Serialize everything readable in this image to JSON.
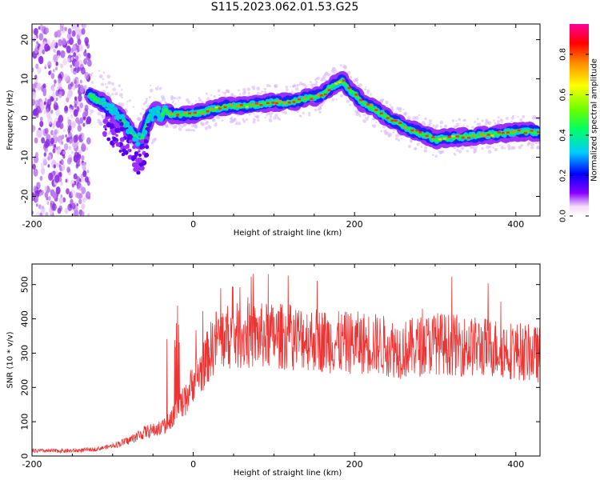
{
  "title": "S115.2023.062.01.53.G25",
  "chart_data": [
    {
      "type": "heatmap",
      "xlabel": "Height of straight line (km)",
      "ylabel": "Frequency (Hz)",
      "xlim": [
        -200,
        430
      ],
      "ylim": [
        -25,
        24
      ],
      "xticks": [
        -200,
        0,
        200,
        400
      ],
      "yticks": [
        -20,
        -10,
        0,
        10,
        20
      ],
      "colorbar": {
        "label": "Normalized spectral amplitude",
        "range": [
          0.0,
          0.95
        ],
        "ticks": [
          "0.0",
          "0.2",
          "0.4",
          "0.6",
          "0.8"
        ]
      },
      "ridge": {
        "x": [
          -130,
          -110,
          -90,
          -75,
          -65,
          -55,
          -45,
          -40,
          -35,
          -30,
          -20,
          0,
          20,
          40,
          60,
          80,
          100,
          120,
          140,
          160,
          175,
          185,
          195,
          210,
          230,
          250,
          270,
          290,
          300,
          320,
          350,
          380,
          400,
          430
        ],
        "y": [
          6,
          3.5,
          0,
          -4,
          -6,
          0,
          2,
          0,
          2.5,
          1,
          1,
          1,
          2,
          3,
          3,
          3.5,
          4,
          4,
          5,
          6,
          8.5,
          9.5,
          7,
          4,
          1.5,
          -1,
          -3,
          -4.5,
          -5.5,
          -5,
          -4.5,
          -4,
          -3.5,
          -3.5
        ]
      }
    },
    {
      "type": "line",
      "series": [
        {
          "values": "dense trace",
          "color": "#ee3333"
        }
      ],
      "xlabel": "Height of straight line (km)",
      "ylabel": "SNR (10 * v/v)",
      "xlim": [
        -200,
        430
      ],
      "ylim": [
        0,
        560
      ],
      "xticks": [
        -200,
        0,
        200,
        400
      ],
      "yticks": [
        0,
        100,
        200,
        300,
        400,
        500
      ],
      "envelope": {
        "x": [
          -200,
          -150,
          -120,
          -100,
          -80,
          -60,
          -40,
          -30,
          -20,
          -10,
          0,
          10,
          20,
          30,
          60,
          100,
          140,
          180,
          220,
          260,
          300,
          340,
          380,
          430
        ],
        "y": [
          15,
          15,
          20,
          30,
          45,
          70,
          80,
          100,
          140,
          160,
          220,
          250,
          300,
          345,
          350,
          350,
          345,
          330,
          330,
          310,
          330,
          320,
          315,
          295
        ]
      }
    }
  ]
}
